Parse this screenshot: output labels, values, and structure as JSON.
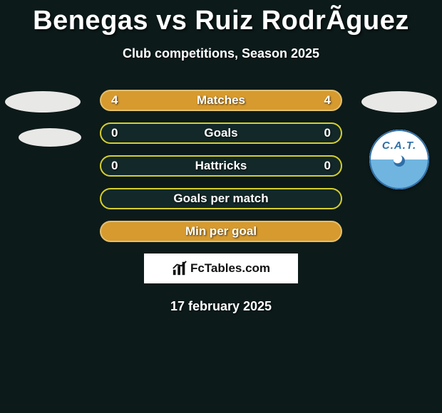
{
  "title": "Benegas vs Ruiz RodrÃ­guez",
  "subtitle": "Club competitions, Season 2025",
  "rows": [
    {
      "label": "Matches",
      "left": "4",
      "right": "4",
      "bg": "#d69a2f",
      "border": "#e3c06d"
    },
    {
      "label": "Goals",
      "left": "0",
      "right": "0",
      "bg": "#132828",
      "border": "#d6cf2d"
    },
    {
      "label": "Hattricks",
      "left": "0",
      "right": "0",
      "bg": "#132828",
      "border": "#d6cf2d"
    },
    {
      "label": "Goals per match",
      "left": "",
      "right": "",
      "bg": "#132828",
      "border": "#d6cf2d"
    },
    {
      "label": "Min per goal",
      "left": "",
      "right": "",
      "bg": "#d69a2f",
      "border": "#e3c06d"
    }
  ],
  "badge": {
    "text": "C.A.T."
  },
  "brand": {
    "text": "FcTables.com"
  },
  "date": "17 february 2025",
  "colors": {
    "page_bg": "#0c1a1a",
    "title_color": "#dddddd",
    "silhouette": "#e8e8e6",
    "badge_blue": "#6fb5e0",
    "badge_text": "#2e6fa8"
  }
}
